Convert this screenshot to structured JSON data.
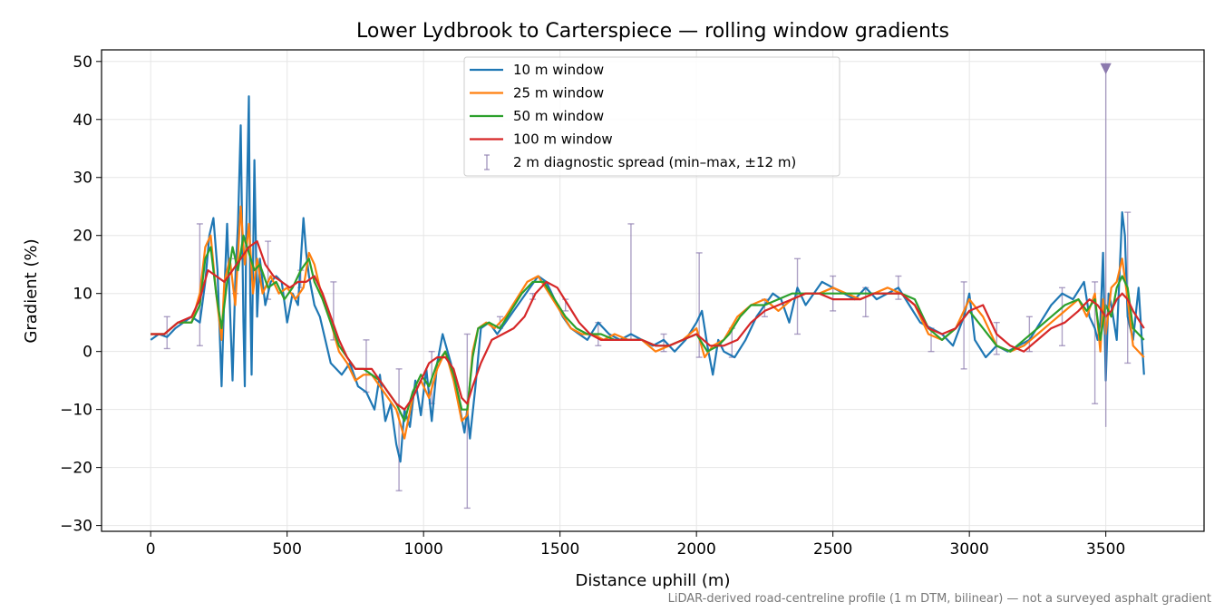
{
  "chart_data": {
    "type": "line",
    "title": "Lower Lydbrook to Carterspiece — rolling window gradients",
    "xlabel": "Distance uphill (m)",
    "ylabel": "Gradient (%)",
    "footnote": "LiDAR-derived road-centreline profile (1 m DTM, bilinear) — not a surveyed asphalt gradient",
    "xlim": [
      -180,
      3860
    ],
    "ylim": [
      -31,
      52
    ],
    "xticks": [
      0,
      500,
      1000,
      1500,
      2000,
      2500,
      3000,
      3500
    ],
    "yticks": [
      -30,
      -20,
      -10,
      0,
      10,
      20,
      30,
      40,
      50
    ],
    "grid": true,
    "legend_position": "top-center",
    "series": [
      {
        "name": "10 m window",
        "color": "#1f77b4",
        "x": [
          0,
          30,
          60,
          90,
          120,
          150,
          180,
          200,
          215,
          230,
          245,
          260,
          270,
          280,
          290,
          300,
          310,
          320,
          330,
          340,
          345,
          350,
          360,
          365,
          370,
          380,
          390,
          400,
          420,
          440,
          460,
          480,
          500,
          520,
          540,
          560,
          570,
          580,
          600,
          620,
          640,
          660,
          680,
          700,
          730,
          760,
          790,
          820,
          840,
          860,
          880,
          900,
          915,
          930,
          950,
          970,
          990,
          1010,
          1030,
          1050,
          1070,
          1100,
          1130,
          1150,
          1160,
          1170,
          1190,
          1210,
          1240,
          1270,
          1300,
          1330,
          1360,
          1390,
          1420,
          1450,
          1480,
          1510,
          1540,
          1570,
          1600,
          1640,
          1680,
          1720,
          1760,
          1800,
          1840,
          1880,
          1920,
          1960,
          2000,
          2020,
          2040,
          2060,
          2080,
          2100,
          2140,
          2180,
          2220,
          2250,
          2280,
          2310,
          2340,
          2370,
          2400,
          2430,
          2460,
          2500,
          2540,
          2580,
          2620,
          2660,
          2700,
          2740,
          2780,
          2820,
          2860,
          2900,
          2940,
          2980,
          3000,
          3020,
          3060,
          3100,
          3140,
          3180,
          3220,
          3260,
          3300,
          3340,
          3380,
          3420,
          3440,
          3460,
          3470,
          3480,
          3490,
          3500,
          3510,
          3520,
          3540,
          3560,
          3570,
          3580,
          3600,
          3620,
          3640
        ],
        "y": [
          2,
          3,
          2.5,
          4,
          5,
          6,
          5,
          12,
          20,
          23,
          14,
          -6,
          10,
          22,
          8,
          -5,
          12,
          22,
          39,
          5,
          -6,
          20,
          44,
          10,
          -4,
          33,
          6,
          16,
          8,
          12,
          13,
          12,
          5,
          10,
          8,
          23,
          17,
          13,
          8,
          6,
          2,
          -2,
          -3,
          -4,
          -2,
          -6,
          -7,
          -10,
          -4,
          -12,
          -9,
          -16,
          -19,
          -10,
          -13,
          -5,
          -11,
          -3,
          -12,
          -2,
          3,
          -2,
          -9,
          -14,
          -10,
          -15,
          -6,
          4,
          5,
          3,
          5,
          7,
          9,
          11,
          13,
          12,
          9,
          6,
          4,
          3,
          2,
          5,
          3,
          2,
          3,
          2,
          1,
          2,
          0,
          2,
          5,
          7,
          1,
          -4,
          2,
          0,
          -1,
          2,
          6,
          8,
          10,
          9,
          5,
          11,
          8,
          10,
          12,
          11,
          10,
          9,
          11,
          9,
          10,
          11,
          8,
          5,
          4,
          3,
          1,
          6,
          10,
          2,
          -1,
          1,
          0,
          1,
          2,
          5,
          8,
          10,
          9,
          12,
          6,
          4,
          2,
          5,
          17,
          -5,
          10,
          8,
          2,
          24,
          20,
          6,
          2,
          11,
          -4
        ]
      },
      {
        "name": "25 m window",
        "color": "#ff7f0e",
        "x": [
          0,
          50,
          100,
          150,
          180,
          200,
          220,
          240,
          260,
          270,
          290,
          310,
          330,
          345,
          360,
          375,
          390,
          410,
          440,
          470,
          500,
          530,
          560,
          580,
          600,
          630,
          660,
          690,
          720,
          750,
          780,
          810,
          840,
          870,
          900,
          930,
          960,
          990,
          1020,
          1050,
          1080,
          1110,
          1140,
          1160,
          1180,
          1200,
          1230,
          1260,
          1300,
          1340,
          1380,
          1420,
          1460,
          1500,
          1540,
          1580,
          1620,
          1660,
          1700,
          1750,
          1800,
          1850,
          1900,
          1950,
          2000,
          2030,
          2060,
          2100,
          2150,
          2200,
          2250,
          2300,
          2350,
          2400,
          2450,
          2500,
          2550,
          2600,
          2650,
          2700,
          2750,
          2800,
          2850,
          2900,
          2950,
          3000,
          3050,
          3100,
          3150,
          3200,
          3250,
          3300,
          3350,
          3400,
          3430,
          3460,
          3480,
          3490,
          3500,
          3520,
          3540,
          3560,
          3580,
          3600,
          3640
        ],
        "y": [
          3,
          3,
          5,
          5,
          10,
          18,
          20,
          10,
          2,
          12,
          16,
          8,
          25,
          15,
          22,
          10,
          16,
          10,
          13,
          10,
          11,
          9,
          11,
          17,
          15,
          9,
          5,
          0,
          -2,
          -5,
          -4,
          -4,
          -6,
          -8,
          -10,
          -15,
          -8,
          -5,
          -8,
          -3,
          0,
          -5,
          -12,
          -11,
          0,
          4,
          5,
          4,
          6,
          9,
          12,
          13,
          10,
          7,
          4,
          3,
          3,
          2,
          3,
          2,
          2,
          0,
          1,
          2,
          4,
          -1,
          1,
          2,
          6,
          8,
          9,
          7,
          9,
          10,
          10,
          11,
          10,
          9,
          10,
          11,
          10,
          8,
          3,
          2,
          4,
          9,
          6,
          1,
          0,
          1,
          3,
          5,
          7,
          9,
          6,
          10,
          0,
          9,
          3,
          11,
          12,
          16,
          9,
          1,
          -1
        ]
      },
      {
        "name": "50 m window",
        "color": "#2ca02c",
        "x": [
          0,
          50,
          100,
          150,
          180,
          200,
          220,
          240,
          260,
          280,
          300,
          320,
          340,
          360,
          380,
          400,
          430,
          460,
          490,
          520,
          550,
          580,
          600,
          630,
          660,
          690,
          720,
          750,
          780,
          810,
          840,
          870,
          900,
          930,
          960,
          990,
          1020,
          1050,
          1080,
          1110,
          1140,
          1160,
          1180,
          1200,
          1240,
          1280,
          1320,
          1360,
          1400,
          1440,
          1480,
          1520,
          1560,
          1600,
          1650,
          1700,
          1750,
          1800,
          1850,
          1900,
          1950,
          2000,
          2040,
          2080,
          2120,
          2160,
          2200,
          2250,
          2300,
          2350,
          2400,
          2450,
          2500,
          2550,
          2600,
          2650,
          2700,
          2750,
          2800,
          2850,
          2900,
          2950,
          3000,
          3050,
          3100,
          3150,
          3200,
          3250,
          3300,
          3350,
          3400,
          3430,
          3460,
          3480,
          3500,
          3520,
          3540,
          3560,
          3580,
          3600,
          3640
        ],
        "y": [
          3,
          3,
          5,
          5,
          8,
          16,
          18,
          10,
          4,
          12,
          18,
          14,
          20,
          17,
          14,
          15,
          11,
          12,
          9,
          11,
          14,
          16,
          12,
          9,
          5,
          1,
          -1,
          -3,
          -3,
          -4,
          -5,
          -7,
          -9,
          -12,
          -7,
          -4,
          -6,
          -2,
          0,
          -4,
          -10,
          -10,
          -1,
          4,
          5,
          4,
          7,
          10,
          12,
          12,
          9,
          6,
          4,
          3,
          3,
          2,
          2,
          2,
          1,
          1,
          2,
          3,
          0,
          1,
          3,
          6,
          8,
          8,
          9,
          10,
          10,
          10,
          10,
          10,
          10,
          10,
          10,
          10,
          9,
          4,
          2,
          4,
          7,
          4,
          1,
          0,
          2,
          4,
          6,
          8,
          9,
          7,
          9,
          2,
          8,
          6,
          11,
          13,
          11,
          4,
          2
        ]
      },
      {
        "name": "100 m window",
        "color": "#d62728",
        "x": [
          0,
          50,
          100,
          150,
          180,
          210,
          240,
          270,
          300,
          330,
          360,
          390,
          420,
          450,
          480,
          510,
          540,
          570,
          600,
          630,
          660,
          690,
          720,
          750,
          780,
          810,
          840,
          870,
          900,
          930,
          960,
          990,
          1020,
          1050,
          1080,
          1110,
          1140,
          1160,
          1180,
          1210,
          1250,
          1290,
          1330,
          1370,
          1410,
          1450,
          1490,
          1530,
          1570,
          1610,
          1650,
          1700,
          1750,
          1800,
          1850,
          1900,
          1950,
          2000,
          2050,
          2100,
          2150,
          2200,
          2250,
          2300,
          2350,
          2400,
          2450,
          2500,
          2550,
          2600,
          2650,
          2700,
          2750,
          2800,
          2850,
          2900,
          2950,
          3000,
          3050,
          3100,
          3150,
          3200,
          3250,
          3300,
          3350,
          3400,
          3440,
          3470,
          3500,
          3520,
          3540,
          3560,
          3580,
          3600,
          3640
        ],
        "y": [
          3,
          3,
          5,
          6,
          9,
          14,
          13,
          12,
          14,
          16,
          18,
          19,
          15,
          13,
          12,
          11,
          12,
          12,
          13,
          10,
          6,
          2,
          -1,
          -3,
          -3,
          -3,
          -5,
          -7,
          -9,
          -10,
          -8,
          -5,
          -2,
          -1,
          -1,
          -3,
          -8,
          -9,
          -6,
          -2,
          2,
          3,
          4,
          6,
          10,
          12,
          11,
          8,
          5,
          3,
          2,
          2,
          2,
          2,
          1,
          1,
          2,
          3,
          1,
          1,
          2,
          5,
          7,
          8,
          9,
          10,
          10,
          9,
          9,
          9,
          10,
          10,
          10,
          8,
          4,
          3,
          4,
          7,
          8,
          3,
          1,
          0,
          2,
          4,
          5,
          7,
          9,
          8,
          6,
          7,
          9,
          10,
          9,
          7,
          4
        ]
      }
    ],
    "diagnostic_series": {
      "name": "2 m diagnostic spread (min–max, ±12 m)",
      "color": "#8c7aae",
      "x": [
        60,
        180,
        310,
        430,
        550,
        670,
        790,
        910,
        1030,
        1160,
        1280,
        1400,
        1520,
        1640,
        1760,
        1880,
        2010,
        2130,
        2250,
        2370,
        2500,
        2620,
        2740,
        2860,
        2980,
        3100,
        3220,
        3340,
        3460,
        3580
      ],
      "min": [
        0.5,
        1,
        10,
        9,
        11,
        2,
        -7,
        -24,
        -9,
        -27,
        4,
        9,
        7,
        1,
        2,
        0,
        -1,
        -1,
        6,
        3,
        7,
        6,
        9,
        0,
        -3,
        -0.5,
        0,
        1,
        -9,
        -2
      ],
      "max": [
        6,
        22,
        16,
        19,
        14,
        12,
        2,
        -3,
        0,
        3,
        6,
        10,
        9,
        5,
        22,
        3,
        17,
        4,
        9,
        16,
        13,
        11,
        13,
        4,
        12,
        5,
        6,
        11,
        12,
        24
      ]
    },
    "annotation": {
      "x": 3500,
      "y": 49,
      "label": "▼",
      "color": "#8c7aae"
    },
    "outlier_line": {
      "x": 3500,
      "y_min": -13,
      "y_max": 48
    }
  }
}
